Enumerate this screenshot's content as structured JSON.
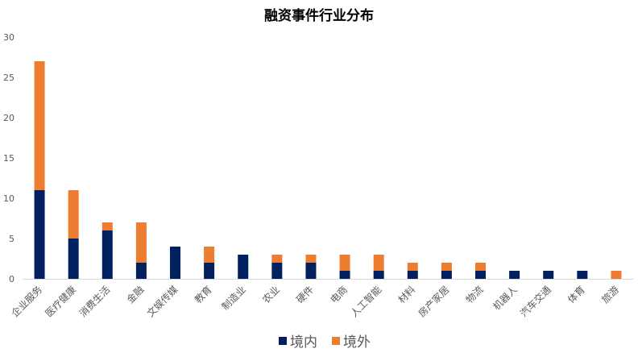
{
  "chart_data": {
    "type": "bar",
    "stacked": true,
    "title": "融资事件行业分布",
    "xlabel": "",
    "ylabel": "",
    "ylim": [
      0,
      30
    ],
    "yticks": [
      0,
      5,
      10,
      15,
      20,
      25,
      30
    ],
    "grid": false,
    "legend_position": "bottom",
    "categories": [
      "企业服务",
      "医疗健康",
      "消费生活",
      "金融",
      "文娱传媒",
      "教育",
      "制造业",
      "农业",
      "硬件",
      "电商",
      "人工智能",
      "材料",
      "房产家居",
      "物流",
      "机器人",
      "汽车交通",
      "体育",
      "旅游"
    ],
    "series": [
      {
        "name": "境内",
        "color": "#002060",
        "values": [
          11,
          5,
          6,
          2,
          4,
          2,
          3,
          2,
          2,
          1,
          1,
          1,
          1,
          1,
          1,
          1,
          1,
          0
        ]
      },
      {
        "name": "境外",
        "color": "#ED7D31",
        "values": [
          16,
          6,
          1,
          5,
          0,
          2,
          0,
          1,
          1,
          2,
          2,
          1,
          1,
          1,
          0,
          0,
          0,
          1
        ]
      }
    ]
  }
}
